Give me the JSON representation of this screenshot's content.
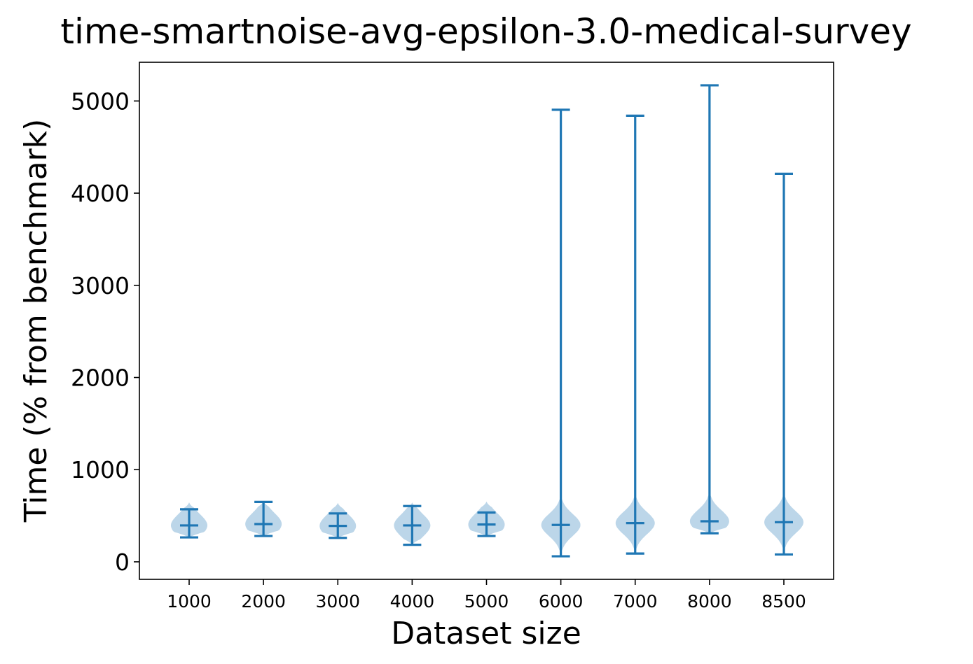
{
  "chart_data": {
    "type": "violin",
    "title": "time-smartnoise-avg-epsilon-3.0-medical-survey",
    "xlabel": "Dataset size",
    "ylabel": "Time (% from benchmark)",
    "categories": [
      "1000",
      "2000",
      "3000",
      "4000",
      "5000",
      "6000",
      "7000",
      "8000",
      "8500"
    ],
    "yticks": [
      0,
      1000,
      2000,
      3000,
      4000,
      5000
    ],
    "ylim": [
      -190,
      5420
    ],
    "grid": false,
    "color": "#1f77b4",
    "fill_color": "#a6c8e1",
    "series": [
      {
        "category": "1000",
        "min": 265,
        "max": 570,
        "median": 395
      },
      {
        "category": "2000",
        "min": 280,
        "max": 650,
        "median": 410
      },
      {
        "category": "3000",
        "min": 260,
        "max": 525,
        "median": 390
      },
      {
        "category": "4000",
        "min": 185,
        "max": 605,
        "median": 395
      },
      {
        "category": "5000",
        "min": 280,
        "max": 535,
        "median": 405
      },
      {
        "category": "6000",
        "min": 60,
        "max": 4905,
        "median": 400
      },
      {
        "category": "7000",
        "min": 90,
        "max": 4840,
        "median": 420
      },
      {
        "category": "8000",
        "min": 310,
        "max": 5170,
        "median": 440
      },
      {
        "category": "8500",
        "min": 80,
        "max": 4210,
        "median": 430
      }
    ]
  }
}
